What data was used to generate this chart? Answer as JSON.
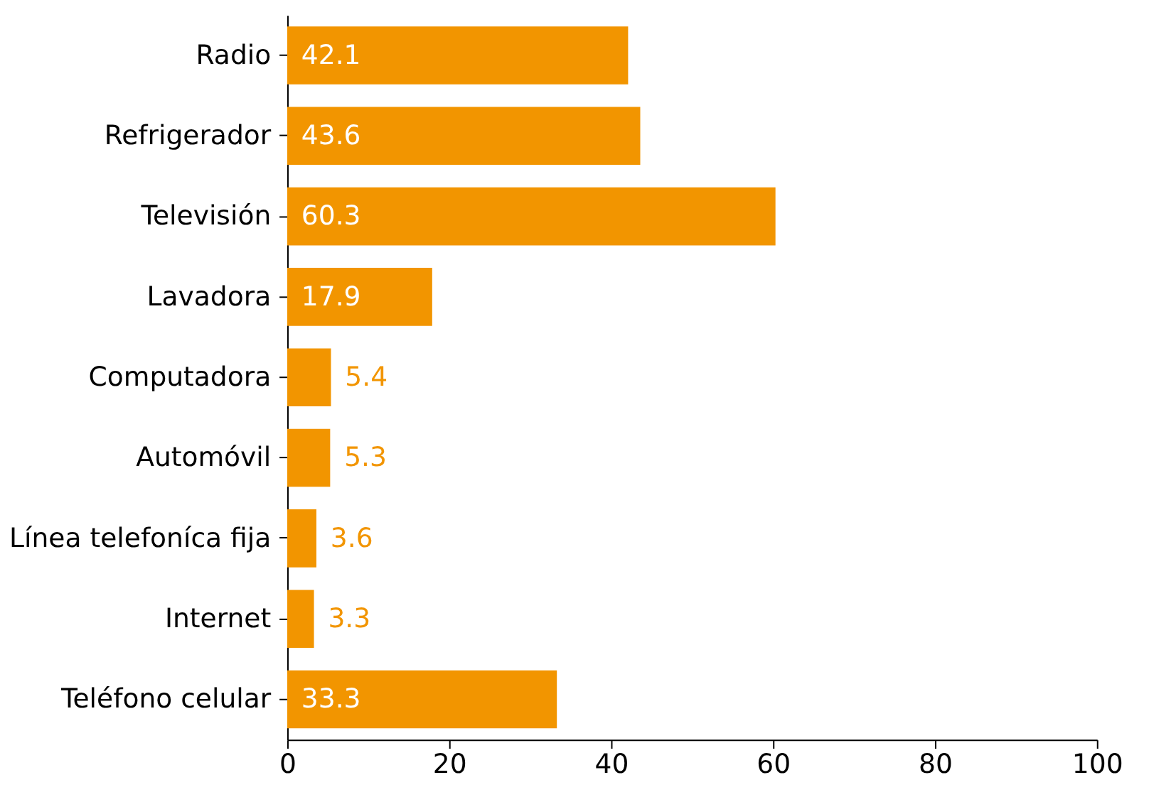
{
  "chart_data": {
    "type": "bar",
    "orientation": "horizontal",
    "categories": [
      "Radio",
      "Refrigerador",
      "Televisión",
      "Lavadora",
      "Computadora",
      "Automóvil",
      "Línea telefoníca fija",
      "Internet",
      "Teléfono celular"
    ],
    "values": [
      42.1,
      43.6,
      60.3,
      17.9,
      5.4,
      5.3,
      3.6,
      3.3,
      33.3
    ],
    "color": "#f29500",
    "xlim": [
      0,
      100
    ],
    "xticks": [
      0,
      20,
      40,
      60,
      80,
      100
    ],
    "data_labels": true,
    "grid": false
  }
}
